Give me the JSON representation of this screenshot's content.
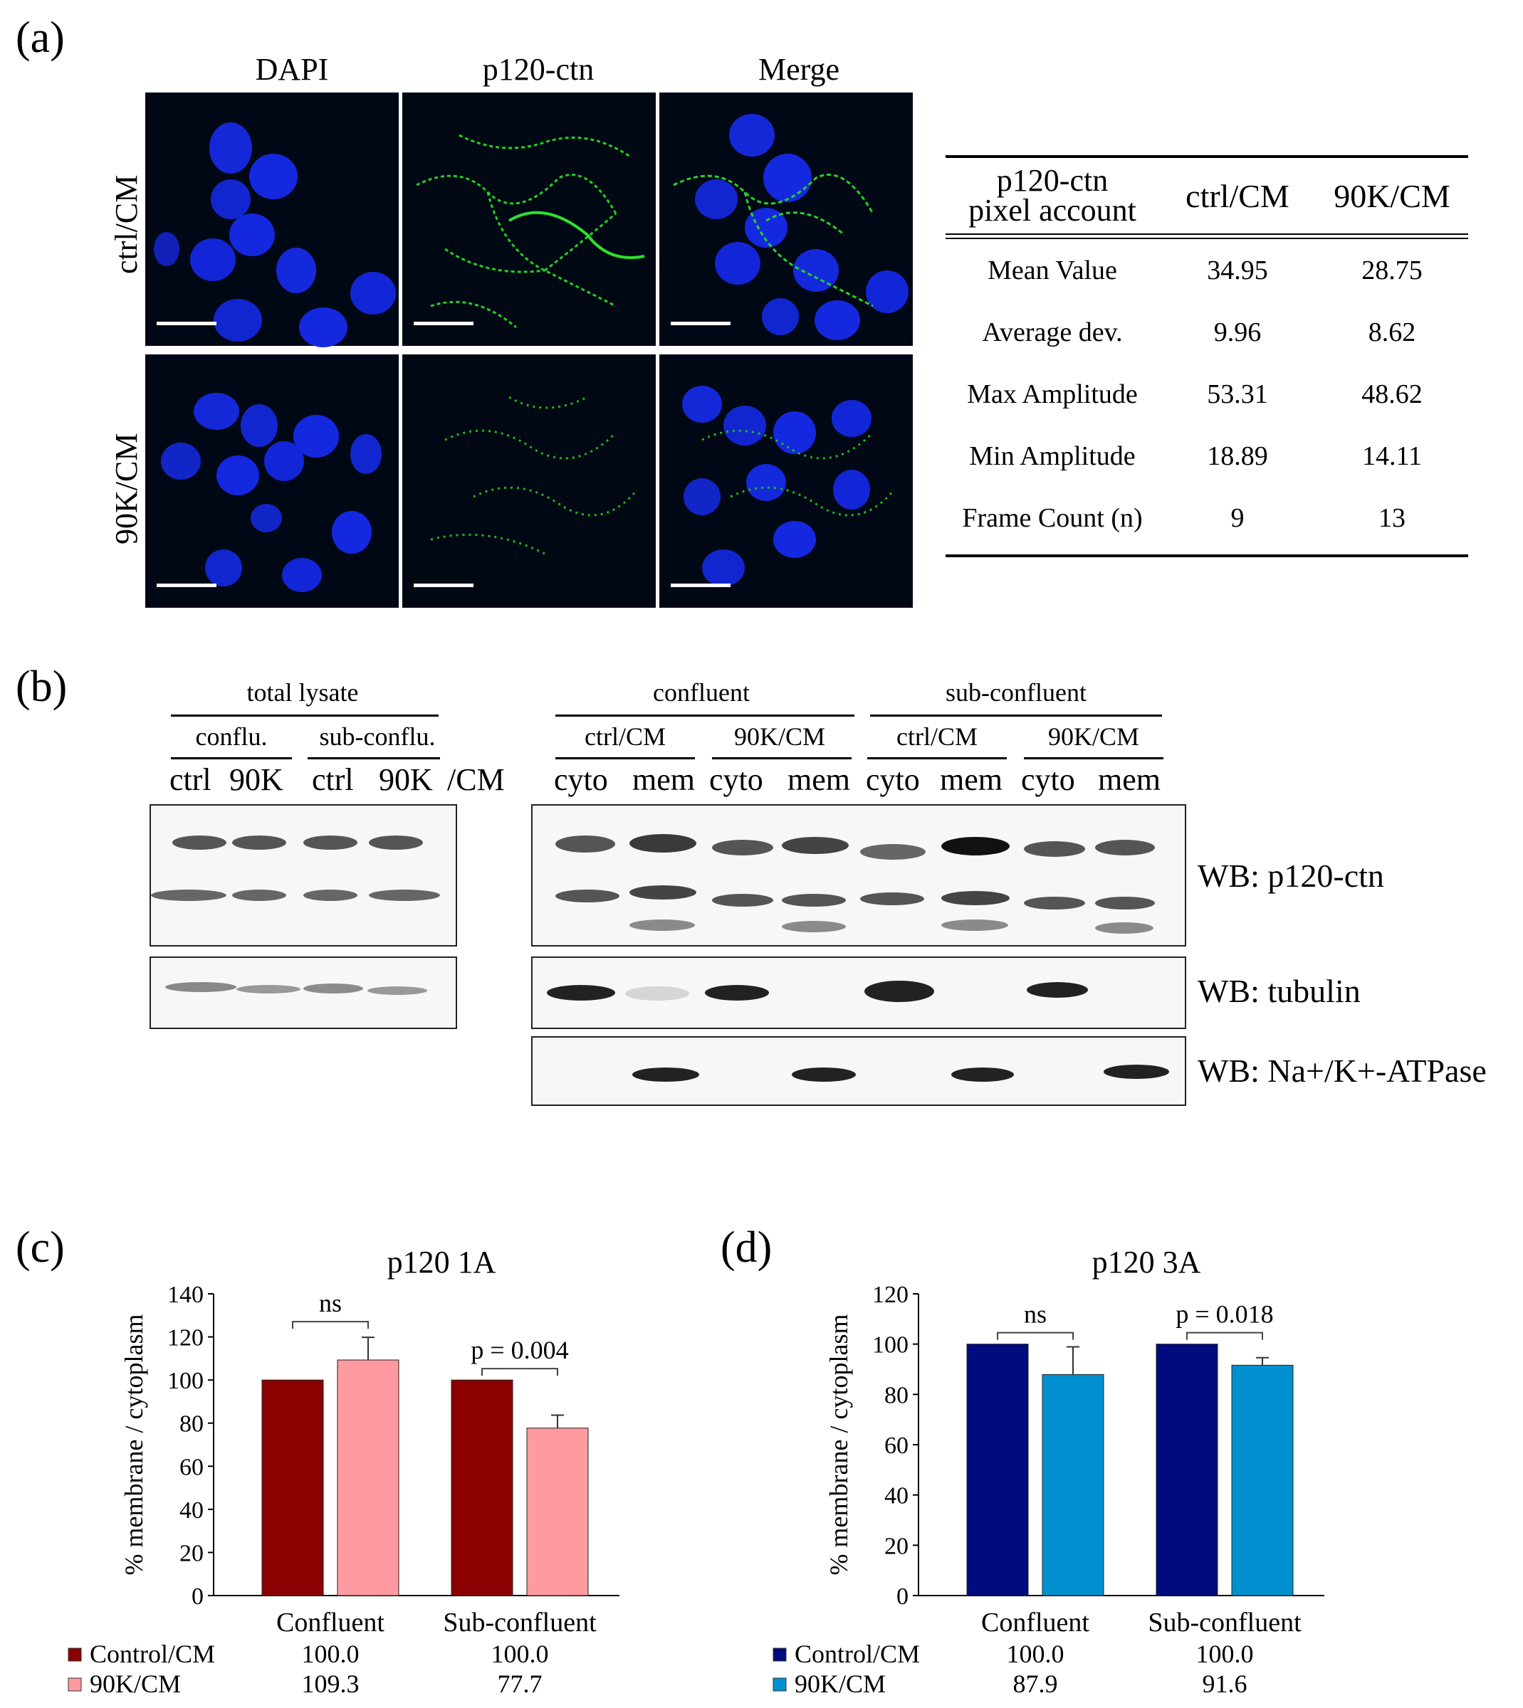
{
  "panel_a": {
    "label": "(a)",
    "columns": [
      "DAPI",
      "p120-ctn",
      "Merge"
    ],
    "rows": [
      "ctrl/CM",
      "90K/CM"
    ],
    "table": {
      "header_metric": "p120-ctn\npixel account",
      "header_cols": [
        "ctrl/CM",
        "90K/CM"
      ],
      "rows": [
        {
          "metric": "Mean Value",
          "ctrl": "34.95",
          "k90": "28.75"
        },
        {
          "metric": "Average dev.",
          "ctrl": "9.96",
          "k90": "8.62"
        },
        {
          "metric": "Max Amplitude",
          "ctrl": "53.31",
          "k90": "48.62"
        },
        {
          "metric": "Min Amplitude",
          "ctrl": "18.89",
          "k90": "14.11"
        },
        {
          "metric": "Frame Count (n)",
          "ctrl": "9",
          "k90": "13"
        }
      ]
    },
    "colors": {
      "nuclei": "#1020e0",
      "p120": "#20c020"
    }
  },
  "panel_b": {
    "label": "(b)",
    "left": {
      "group": "total lysate",
      "sub": [
        "conflu.",
        "sub-conflu."
      ],
      "lanes": [
        "ctrl",
        "90K",
        "ctrl",
        "90K",
        "/CM"
      ]
    },
    "right": {
      "groups": [
        "confluent",
        "sub-confluent"
      ],
      "sub": [
        "ctrl/CM",
        "90K/CM",
        "ctrl/CM",
        "90K/CM"
      ],
      "lanes": [
        "cyto",
        "mem",
        "cyto",
        "mem",
        "cyto",
        "mem",
        "cyto",
        "mem"
      ]
    },
    "wb_labels": [
      "WB: p120-ctn",
      "WB: tubulin",
      "WB: Na+/K+-ATPase"
    ]
  },
  "chart_data": [
    {
      "panel": "(c)",
      "type": "bar",
      "title": "p120 1A",
      "ylabel": "% membrane / cytoplasm",
      "ylim": [
        0,
        140
      ],
      "yticks": [
        0,
        20,
        40,
        60,
        80,
        100,
        120,
        140
      ],
      "categories": [
        "Confluent",
        "Sub-confluent"
      ],
      "series": [
        {
          "name": "Control/CM",
          "color": "#8b0000",
          "values": [
            100.0,
            100.0
          ],
          "labels": [
            "100.0",
            "100.0"
          ]
        },
        {
          "name": "90K/CM",
          "color": "#ff9aa0",
          "values": [
            109.3,
            77.7
          ],
          "labels": [
            "109.3",
            "77.7"
          ],
          "errors": [
            10.5,
            6.0
          ]
        }
      ],
      "annotations": [
        "ns",
        "p = 0.004"
      ]
    },
    {
      "panel": "(d)",
      "type": "bar",
      "title": "p120 3A",
      "ylabel": "% membrane / cytoplasm",
      "ylim": [
        0,
        120
      ],
      "yticks": [
        0,
        20,
        40,
        60,
        80,
        100,
        120
      ],
      "categories": [
        "Confluent",
        "Sub-confluent"
      ],
      "series": [
        {
          "name": "Control/CM",
          "color": "#000b80",
          "values": [
            100.0,
            100.0
          ],
          "labels": [
            "100.0",
            "100.0"
          ]
        },
        {
          "name": "90K/CM",
          "color": "#0090d0",
          "values": [
            87.9,
            91.6
          ],
          "labels": [
            "87.9",
            "91.6"
          ],
          "errors": [
            11.0,
            3.0
          ]
        }
      ],
      "annotations": [
        "ns",
        "p = 0.018"
      ]
    }
  ]
}
